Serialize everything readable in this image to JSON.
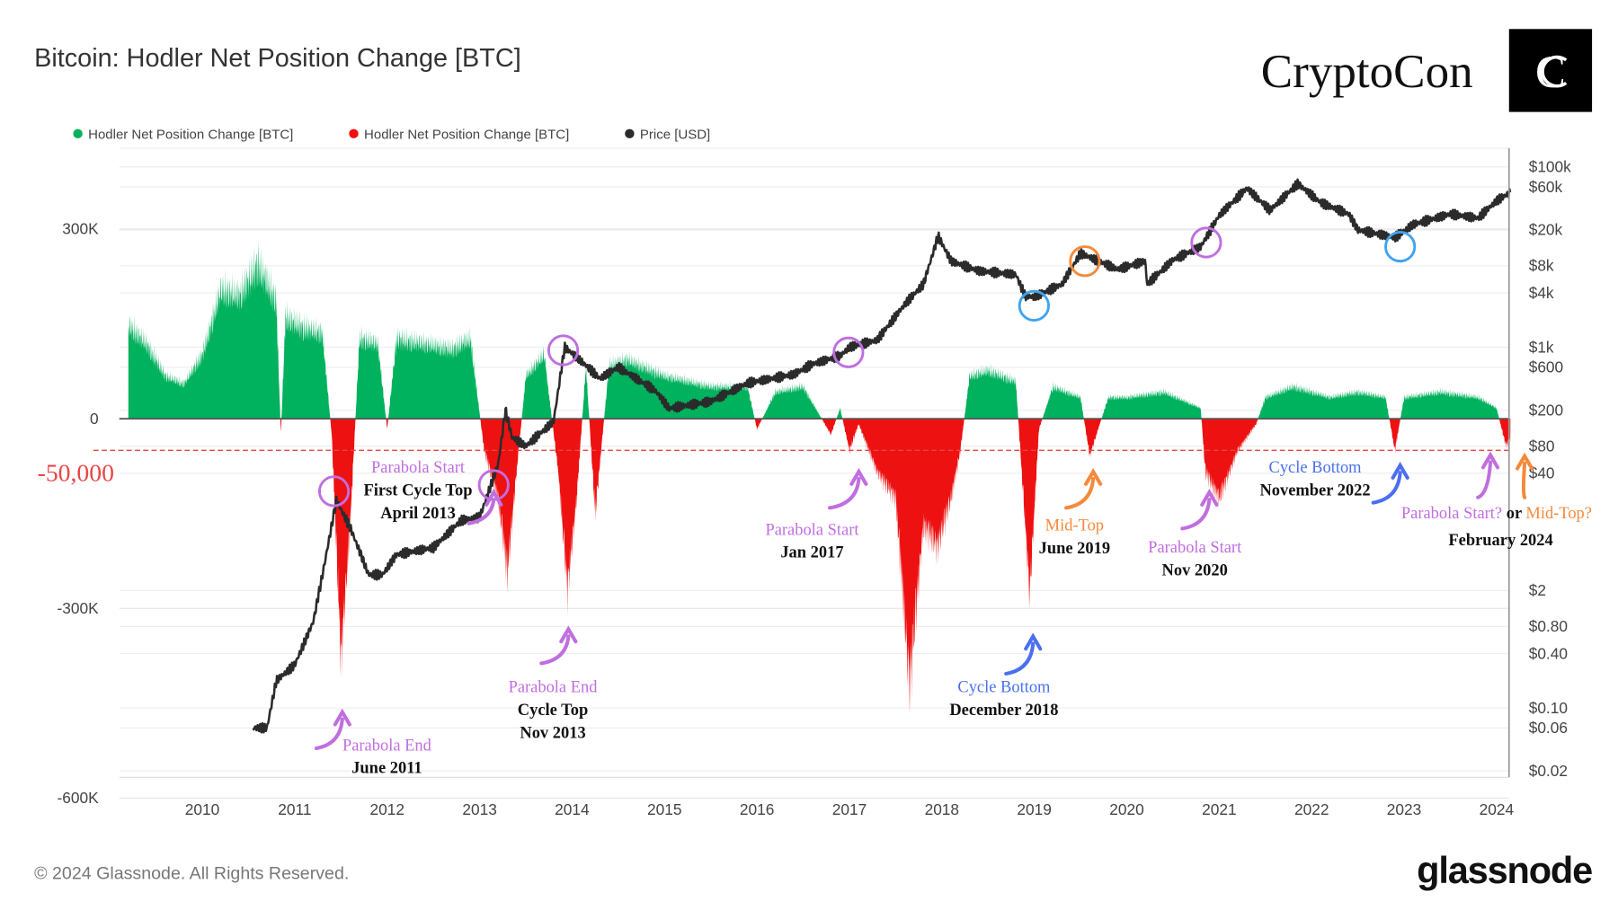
{
  "header": {
    "title": "Bitcoin: Hodler Net Position Change [BTC]",
    "brand": "CryptoCon"
  },
  "footer": {
    "copyright": "© 2024 Glassnode. All Rights Reserved.",
    "logo": "glassnode"
  },
  "colors": {
    "positive": "#00b15d",
    "negative": "#ee1111",
    "price": "#2b2b2b",
    "purple": "#c06ee0",
    "blue": "#4a6ff0",
    "orange": "#f58a3c",
    "circle_blue": "#3fa3f0",
    "threshold": "#e84545"
  },
  "chart_data": {
    "type": "area",
    "title": "Bitcoin: Hodler Net Position Change [BTC]",
    "legend": {
      "placement": "top-left",
      "entries": [
        {
          "name": "Hodler Net Position Change [BTC]",
          "color": "#00b15d"
        },
        {
          "name": "Hodler Net Position Change [BTC]",
          "color": "#ee1111"
        },
        {
          "name": "Price [USD]",
          "color": "#2b2b2b"
        }
      ]
    },
    "x_ticks": [
      "2010",
      "2011",
      "2012",
      "2013",
      "2014",
      "2015",
      "2016",
      "2017",
      "2018",
      "2019",
      "2020",
      "2021",
      "2022",
      "2023",
      "2024"
    ],
    "y_left": {
      "ticks": [
        "300K",
        "0",
        "-300K",
        "-600K"
      ],
      "tick_values": [
        300000,
        0,
        -300000,
        -600000
      ],
      "range": [
        -630000,
        480000
      ]
    },
    "y_right": {
      "scale": "log",
      "ticks": [
        "$100k",
        "$60k",
        "$20k",
        "$8k",
        "$4k",
        "$1k",
        "$600",
        "$200",
        "$80",
        "$40",
        "$2",
        "$0.80",
        "$0.40",
        "$0.10",
        "$0.06",
        "$0.02"
      ],
      "tick_values": [
        100000,
        60000,
        20000,
        8000,
        4000,
        1000,
        600,
        200,
        80,
        40,
        2,
        0.8,
        0.4,
        0.1,
        0.06,
        0.02
      ],
      "range": [
        0.02,
        100000
      ]
    },
    "threshold": {
      "value": -50000,
      "label": "-50,000"
    },
    "grid": true,
    "hodler_series": [
      [
        2009.2,
        175000
      ],
      [
        2009.4,
        140000
      ],
      [
        2009.6,
        80000
      ],
      [
        2009.8,
        65000
      ],
      [
        2010.0,
        120000
      ],
      [
        2010.2,
        240000
      ],
      [
        2010.4,
        230000
      ],
      [
        2010.6,
        290000
      ],
      [
        2010.8,
        220000
      ],
      [
        2010.85,
        -30000
      ],
      [
        2010.9,
        190000
      ],
      [
        2011.1,
        170000
      ],
      [
        2011.3,
        160000
      ],
      [
        2011.4,
        -30000
      ],
      [
        2011.5,
        -450000
      ],
      [
        2011.6,
        -200000
      ],
      [
        2011.7,
        150000
      ],
      [
        2011.9,
        140000
      ],
      [
        2012.0,
        -20000
      ],
      [
        2012.1,
        150000
      ],
      [
        2012.4,
        140000
      ],
      [
        2012.7,
        130000
      ],
      [
        2012.9,
        150000
      ],
      [
        2013.05,
        -60000
      ],
      [
        2013.2,
        -150000
      ],
      [
        2013.3,
        -290000
      ],
      [
        2013.4,
        -100000
      ],
      [
        2013.5,
        80000
      ],
      [
        2013.7,
        120000
      ],
      [
        2013.85,
        -100000
      ],
      [
        2013.95,
        -320000
      ],
      [
        2014.05,
        -150000
      ],
      [
        2014.15,
        100000
      ],
      [
        2014.25,
        -180000
      ],
      [
        2014.4,
        100000
      ],
      [
        2014.6,
        110000
      ],
      [
        2015.0,
        80000
      ],
      [
        2015.5,
        60000
      ],
      [
        2015.9,
        60000
      ],
      [
        2016.0,
        -20000
      ],
      [
        2016.2,
        50000
      ],
      [
        2016.5,
        60000
      ],
      [
        2016.8,
        -30000
      ],
      [
        2016.9,
        20000
      ],
      [
        2017.0,
        -60000
      ],
      [
        2017.1,
        -10000
      ],
      [
        2017.3,
        -100000
      ],
      [
        2017.5,
        -150000
      ],
      [
        2017.65,
        -500000
      ],
      [
        2017.8,
        -200000
      ],
      [
        2017.95,
        -240000
      ],
      [
        2018.1,
        -150000
      ],
      [
        2018.2,
        -60000
      ],
      [
        2018.3,
        80000
      ],
      [
        2018.5,
        90000
      ],
      [
        2018.8,
        70000
      ],
      [
        2018.95,
        -330000
      ],
      [
        2019.05,
        -20000
      ],
      [
        2019.2,
        60000
      ],
      [
        2019.5,
        40000
      ],
      [
        2019.6,
        -70000
      ],
      [
        2019.8,
        40000
      ],
      [
        2020.0,
        40000
      ],
      [
        2020.4,
        50000
      ],
      [
        2020.8,
        20000
      ],
      [
        2020.85,
        -100000
      ],
      [
        2021.0,
        -150000
      ],
      [
        2021.2,
        -60000
      ],
      [
        2021.4,
        -10000
      ],
      [
        2021.5,
        40000
      ],
      [
        2021.8,
        60000
      ],
      [
        2022.2,
        40000
      ],
      [
        2022.5,
        50000
      ],
      [
        2022.8,
        40000
      ],
      [
        2022.9,
        -60000
      ],
      [
        2023.0,
        40000
      ],
      [
        2023.4,
        50000
      ],
      [
        2023.8,
        40000
      ],
      [
        2024.0,
        20000
      ],
      [
        2024.1,
        -50000
      ],
      [
        2024.15,
        -40000
      ]
    ],
    "price_series": [
      [
        2010.55,
        0.06
      ],
      [
        2010.7,
        0.06
      ],
      [
        2010.8,
        0.2
      ],
      [
        2011.0,
        0.3
      ],
      [
        2011.2,
        0.9
      ],
      [
        2011.3,
        3
      ],
      [
        2011.45,
        20
      ],
      [
        2011.6,
        10
      ],
      [
        2011.8,
        3
      ],
      [
        2011.95,
        3
      ],
      [
        2012.1,
        5
      ],
      [
        2012.5,
        6
      ],
      [
        2012.8,
        12
      ],
      [
        2013.0,
        13
      ],
      [
        2013.2,
        50
      ],
      [
        2013.28,
        200
      ],
      [
        2013.35,
        100
      ],
      [
        2013.5,
        80
      ],
      [
        2013.8,
        150
      ],
      [
        2013.92,
        1000
      ],
      [
        2014.1,
        700
      ],
      [
        2014.3,
        450
      ],
      [
        2014.5,
        600
      ],
      [
        2014.9,
        330
      ],
      [
        2015.05,
        210
      ],
      [
        2015.5,
        250
      ],
      [
        2015.9,
        400
      ],
      [
        2016.4,
        500
      ],
      [
        2016.6,
        650
      ],
      [
        2016.9,
        800
      ],
      [
        2017.0,
        1000
      ],
      [
        2017.3,
        1200
      ],
      [
        2017.6,
        3000
      ],
      [
        2017.8,
        5000
      ],
      [
        2017.96,
        17000
      ],
      [
        2018.1,
        9000
      ],
      [
        2018.4,
        7000
      ],
      [
        2018.8,
        6400
      ],
      [
        2018.9,
        3700
      ],
      [
        2019.0,
        3600
      ],
      [
        2019.3,
        5000
      ],
      [
        2019.5,
        11000
      ],
      [
        2019.9,
        7300
      ],
      [
        2020.2,
        9000
      ],
      [
        2020.22,
        5000
      ],
      [
        2020.5,
        9300
      ],
      [
        2020.8,
        13000
      ],
      [
        2021.0,
        29000
      ],
      [
        2021.3,
        58000
      ],
      [
        2021.55,
        33000
      ],
      [
        2021.85,
        65000
      ],
      [
        2022.1,
        40000
      ],
      [
        2022.4,
        30000
      ],
      [
        2022.5,
        20000
      ],
      [
        2022.9,
        16500
      ],
      [
        2023.1,
        23000
      ],
      [
        2023.5,
        30000
      ],
      [
        2023.8,
        27000
      ],
      [
        2024.0,
        42000
      ],
      [
        2024.15,
        52000
      ]
    ],
    "annotations": [
      {
        "lines": [
          {
            "text": "Parabola Start",
            "color": "purple"
          },
          {
            "text": "First Cycle Top",
            "color": "black"
          },
          {
            "text": "April 2013",
            "color": "black"
          }
        ]
      },
      {
        "lines": [
          {
            "text": "Parabola End",
            "color": "purple"
          },
          {
            "text": "Cycle Top",
            "color": "black"
          },
          {
            "text": "Nov 2013",
            "color": "black"
          }
        ]
      },
      {
        "lines": [
          {
            "text": "Parabola End",
            "color": "purple"
          },
          {
            "text": "June 2011",
            "color": "black"
          }
        ]
      },
      {
        "lines": [
          {
            "text": "Parabola Start",
            "color": "purple"
          },
          {
            "text": "Jan 2017",
            "color": "black"
          }
        ]
      },
      {
        "lines": [
          {
            "text": "Cycle Bottom",
            "color": "blue"
          },
          {
            "text": "December 2018",
            "color": "black"
          }
        ]
      },
      {
        "lines": [
          {
            "text": "Mid-Top",
            "color": "orange"
          },
          {
            "text": "June 2019",
            "color": "black"
          }
        ]
      },
      {
        "lines": [
          {
            "text": "Parabola Start",
            "color": "purple"
          },
          {
            "text": "Nov 2020",
            "color": "black"
          }
        ]
      },
      {
        "lines": [
          {
            "text": "Cycle Bottom",
            "color": "blue"
          },
          {
            "text": "November 2022",
            "color": "black"
          }
        ]
      },
      {
        "lines": [
          {
            "text": "February 2024",
            "color": "black"
          }
        ],
        "mixed": [
          {
            "text": "Parabola Start?",
            "color": "purple"
          },
          {
            "text": " or ",
            "color": "black"
          },
          {
            "text": "Mid-Top?",
            "color": "orange"
          }
        ]
      }
    ],
    "circles": [
      {
        "date": 2011.45,
        "color": "purple"
      },
      {
        "date": 2013.28,
        "color": "purple"
      },
      {
        "date": 2013.92,
        "color": "purple"
      },
      {
        "date": 2017.0,
        "color": "purple"
      },
      {
        "date": 2019.0,
        "color": "blue"
      },
      {
        "date": 2019.55,
        "color": "orange"
      },
      {
        "date": 2020.9,
        "color": "purple"
      },
      {
        "date": 2022.95,
        "color": "blue"
      }
    ]
  }
}
